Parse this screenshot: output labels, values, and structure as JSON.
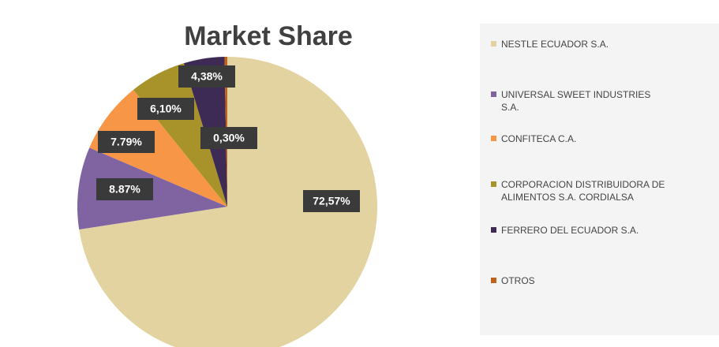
{
  "chart_data": {
    "type": "pie",
    "title": "Market Share",
    "categories": [
      "NESTLE ECUADOR S.A.",
      "UNIVERSAL SWEET INDUSTRIES S.A.",
      "CONFITECA C.A.",
      "CORPORACION DISTRIBUIDORA DE ALIMENTOS S.A. CORDIALSA",
      "FERRERO DEL ECUADOR S.A.",
      "OTROS"
    ],
    "values": [
      72.57,
      8.87,
      7.79,
      6.1,
      4.38,
      0.3
    ],
    "value_labels": [
      "72,57%",
      "8.87%",
      "7.79%",
      "6,10%",
      "4,38%",
      "0,30%"
    ],
    "colors": [
      "#e3d3a0",
      "#8064a2",
      "#f79646",
      "#a8922a",
      "#3d2b56",
      "#c0621c"
    ],
    "legend": "right"
  }
}
